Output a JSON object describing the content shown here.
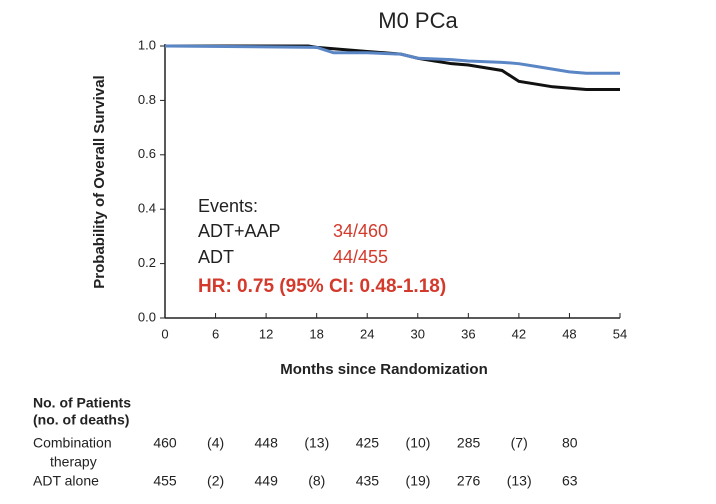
{
  "chart_data": {
    "type": "line",
    "title": "M0 PCa",
    "x_label": "Months since Randomization",
    "y_label": "Probability of Overall Survival",
    "xlim": [
      0,
      54
    ],
    "xticks": [
      0,
      6,
      12,
      18,
      24,
      30,
      36,
      42,
      48,
      54
    ],
    "ylim": [
      0,
      1
    ],
    "yticks": [
      {
        "value": 0,
        "label": "0.0"
      },
      {
        "value": 0.2,
        "label": "0.2"
      },
      {
        "value": 0.4,
        "label": "0.4"
      },
      {
        "value": 0.6,
        "label": "0.6"
      },
      {
        "value": 0.8,
        "label": "0.8"
      },
      {
        "value": 1,
        "label": "1.0"
      }
    ],
    "series": [
      {
        "color": "#111111",
        "x": [
          0,
          17,
          18,
          20,
          22,
          24,
          26,
          28,
          30,
          32,
          34,
          36,
          38,
          40,
          41,
          42,
          44,
          46,
          48,
          50,
          54
        ],
        "values": [
          1,
          1,
          0.995,
          0.99,
          0.985,
          0.98,
          0.975,
          0.97,
          0.955,
          0.945,
          0.935,
          0.93,
          0.92,
          0.91,
          0.89,
          0.87,
          0.86,
          0.85,
          0.845,
          0.84,
          0.84
        ]
      },
      {
        "color": "#5b86c5",
        "x": [
          0,
          18,
          19,
          20,
          24,
          28,
          30,
          34,
          36,
          40,
          42,
          44,
          46,
          48,
          50,
          54
        ],
        "values": [
          1,
          0.995,
          0.985,
          0.975,
          0.975,
          0.97,
          0.955,
          0.95,
          0.945,
          0.94,
          0.935,
          0.925,
          0.915,
          0.905,
          0.9,
          0.9
        ]
      }
    ],
    "annotation": {
      "heading": "Events:",
      "rows": [
        {
          "label": "ADT+AAP",
          "value": "34/460"
        },
        {
          "label": "ADT",
          "value": "44/455"
        }
      ],
      "hr": "HR: 0.75 (95% CI: 0.48-1.18)"
    },
    "risk_table": {
      "heading": [
        "No. of Patients",
        "(no. of deaths)"
      ],
      "rows": [
        {
          "label": [
            "Combination",
            "therapy"
          ],
          "values": [
            "460",
            "(4)",
            "448",
            "(13)",
            "425",
            "(10)",
            "285",
            "(7)",
            "80"
          ]
        },
        {
          "label": [
            "ADT alone"
          ],
          "values": [
            "455",
            "(2)",
            "449",
            "(8)",
            "435",
            "(19)",
            "276",
            "(13)",
            "63"
          ]
        }
      ]
    }
  }
}
